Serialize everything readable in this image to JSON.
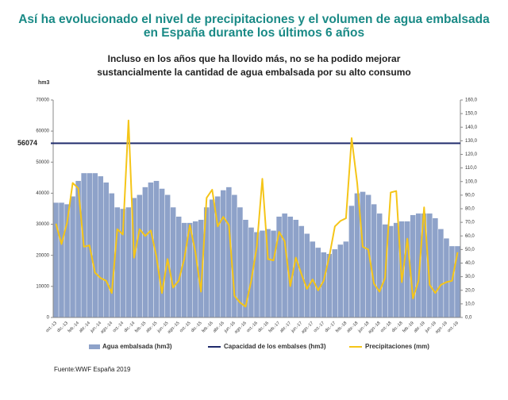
{
  "chart_data": {
    "type": "bar",
    "title": "Así ha evolucionado el nivel de precipitaciones y el volumen de agua embalsada en España durante los últimos 6 años",
    "subtitle": "Incluso en los años que ha llovido más, no se ha podido mejorar sustancialmente la cantidad de agua embalsada por su alto consumo",
    "y_axis_label": "hm3",
    "source": "Fuente:WWF España 2019",
    "categories": [
      "oct.-13",
      null,
      "dic.-13",
      null,
      "feb.-14",
      null,
      "abr.-14",
      null,
      "jun.-14",
      null,
      "ago.-14",
      null,
      "oct.-14",
      null,
      "dic.-14",
      null,
      "feb.-15",
      null,
      "abr.-15",
      null,
      "jun.-15",
      null,
      "ago.-15",
      null,
      "oct.-15",
      null,
      "dic.-15",
      null,
      "feb.-16",
      null,
      "abr.-16",
      null,
      "jun.-16",
      null,
      "ago.-16",
      null,
      "oct.-16",
      null,
      "dic.-16",
      null,
      "feb.-17",
      null,
      "abr.-17",
      null,
      "jun.-17",
      null,
      "ago.-17",
      null,
      "oct.-17",
      null,
      "dic.-17",
      null,
      "feb.-18",
      null,
      "abr.-18",
      null,
      "jun.-18",
      null,
      "ago.-18",
      null,
      "oct.-18",
      null,
      "dic.-18",
      null,
      "feb.-19",
      null,
      "abr.-19",
      null,
      "jun.-19",
      null,
      "ago.-19",
      null,
      "oct.-19"
    ],
    "series": [
      {
        "name": "Agua embalsada (hm3)",
        "color": "#8ea2c9",
        "values": [
          37000,
          37000,
          36500,
          39000,
          44000,
          46500,
          46500,
          46500,
          45500,
          43500,
          40000,
          35500,
          35000,
          35500,
          38500,
          39500,
          42000,
          43500,
          44000,
          41500,
          39500,
          35500,
          32500,
          30500,
          30500,
          31000,
          31500,
          35500,
          38000,
          39000,
          41000,
          42000,
          39500,
          35500,
          31500,
          29000,
          27500,
          28000,
          28500,
          28000,
          32500,
          33500,
          32500,
          31500,
          29500,
          27000,
          24500,
          22500,
          21000,
          20500,
          22000,
          23500,
          24500,
          36000,
          40000,
          40500,
          39500,
          36500,
          33500,
          30000,
          29500,
          30500,
          31000,
          31000,
          33000,
          33500,
          33500,
          33500,
          32000,
          28500,
          25500,
          23000,
          23000
        ]
      },
      {
        "name": "Precipitaciones (mm)",
        "color": "#f5c518",
        "axis": "y2",
        "values": [
          69,
          54,
          70,
          99,
          95,
          52,
          53,
          33,
          29,
          27,
          18,
          65,
          61,
          145,
          44,
          65,
          60,
          64,
          45,
          18,
          43,
          22,
          27,
          43,
          68,
          48,
          19,
          88,
          94,
          67,
          74,
          68,
          16,
          11,
          8,
          27,
          52,
          102,
          43,
          42,
          63,
          56,
          23,
          44,
          32,
          21,
          28,
          20,
          27,
          45,
          67,
          71,
          73,
          132,
          99,
          52,
          50,
          25,
          19,
          29,
          92,
          93,
          26,
          58,
          14,
          27,
          81,
          24,
          18,
          24,
          26,
          27,
          48
        ]
      }
    ],
    "capacity": {
      "name": "Capacidad de los embalses (hm3)",
      "color": "#1f2a6b",
      "value": 56074
    },
    "ylim": [
      0,
      70000
    ],
    "yticks": [
      0,
      10000,
      20000,
      30000,
      40000,
      50000,
      60000,
      70000
    ],
    "y2lim": [
      0,
      160
    ],
    "y2ticks": [
      {
        "value": 0,
        "label": "0,0"
      },
      {
        "value": 10,
        "label": "10,0"
      },
      {
        "value": 20,
        "label": "20,0"
      },
      {
        "value": 30,
        "label": "30,0"
      },
      {
        "value": 40,
        "label": "40,0"
      },
      {
        "value": 50,
        "label": "50,0"
      },
      {
        "value": 60,
        "label": "60,0"
      },
      {
        "value": 70,
        "label": "70,0"
      },
      {
        "value": 80,
        "label": "80,0"
      },
      {
        "value": 90,
        "label": "90,0"
      },
      {
        "value": 100,
        "label": "100,0"
      },
      {
        "value": 110,
        "label": "110,0"
      },
      {
        "value": 120,
        "label": "120,0"
      },
      {
        "value": 130,
        "label": "130,0"
      },
      {
        "value": 140,
        "label": "140,0"
      },
      {
        "value": 150,
        "label": "150,0"
      },
      {
        "value": 160,
        "label": "160,0"
      }
    ]
  }
}
